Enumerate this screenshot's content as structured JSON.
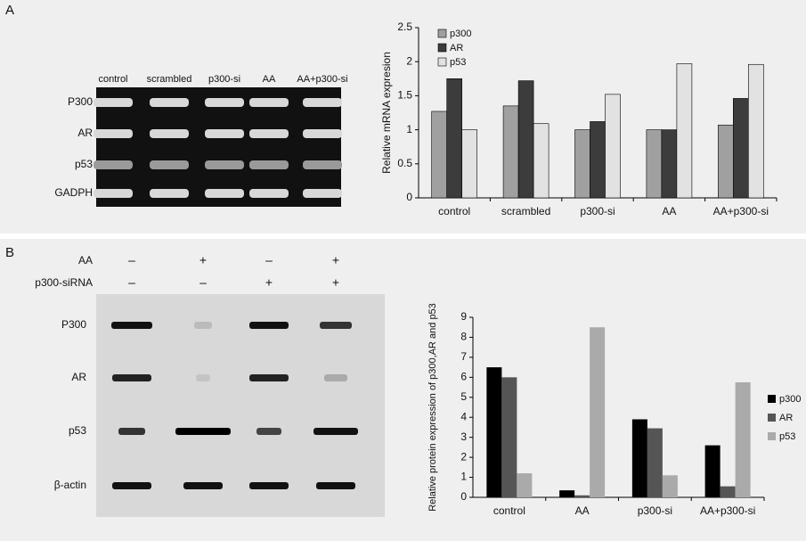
{
  "panel_a": {
    "letter": "A",
    "gel": {
      "lanes": [
        "control",
        "scrambled",
        "p300-si",
        "AA",
        "AA+p300-si"
      ],
      "rows": [
        "P300",
        "AR",
        "p53",
        "GADPH"
      ]
    }
  },
  "panel_b": {
    "letter": "B",
    "blot": {
      "conditions": [
        {
          "label": "AA",
          "signs": [
            "–",
            "+",
            "–",
            "+"
          ]
        },
        {
          "label": "p300-siRNA",
          "signs": [
            "–",
            "–",
            "+",
            "+"
          ]
        }
      ],
      "rows": [
        "P300",
        "AR",
        "p53",
        "β-actin"
      ]
    }
  },
  "chart_data": [
    {
      "type": "bar",
      "y_label": "Relative mRNA expresion",
      "categories": [
        "control",
        "scrambled",
        "p300-si",
        "AA",
        "AA+p300-si"
      ],
      "series": [
        {
          "name": "p300",
          "color": "#a0a0a0",
          "values": [
            1.27,
            1.35,
            1.0,
            1.0,
            1.07
          ]
        },
        {
          "name": "AR",
          "color": "#3c3c3c",
          "values": [
            1.75,
            1.72,
            1.12,
            1.0,
            1.46
          ]
        },
        {
          "name": "p53",
          "color": "#e2e2e2",
          "values": [
            1.0,
            1.09,
            1.52,
            1.97,
            1.96
          ]
        }
      ],
      "ylim": [
        0,
        2.5
      ],
      "yticks": [
        0,
        0.5,
        1,
        1.5,
        2,
        2.5
      ],
      "legend": "upper-left"
    },
    {
      "type": "bar",
      "y_label": "Relative protein expression of p300,AR and p53",
      "categories": [
        "control",
        "AA",
        "p300-si",
        "AA+p300-si"
      ],
      "series": [
        {
          "name": "p300",
          "color": "#000000",
          "values": [
            6.5,
            0.35,
            3.9,
            2.6
          ]
        },
        {
          "name": "AR",
          "color": "#555555",
          "values": [
            6.0,
            0.1,
            3.45,
            0.55
          ]
        },
        {
          "name": "p53",
          "color": "#aaaaaa",
          "values": [
            1.2,
            8.5,
            1.1,
            5.75
          ]
        }
      ],
      "ylim": [
        0,
        9
      ],
      "yticks": [
        0,
        1,
        2,
        3,
        4,
        5,
        6,
        7,
        8,
        9
      ],
      "legend": "right"
    }
  ]
}
